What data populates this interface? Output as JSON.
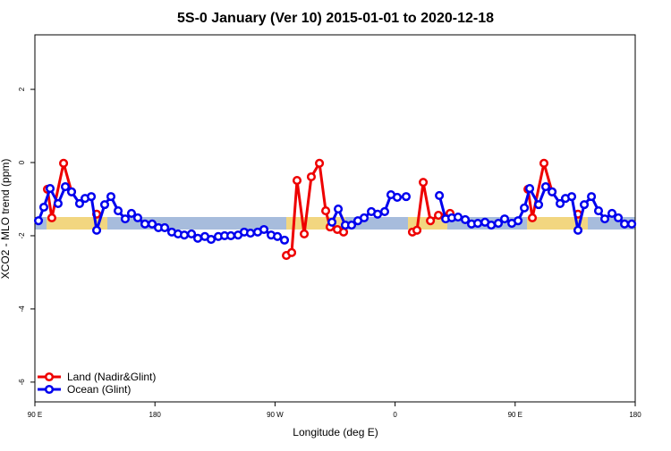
{
  "chart_data": {
    "type": "line",
    "title": "5S-0 January (Ver 10)   2015-01-01 to 2020-12-18",
    "x_label": "Longitude (deg E)",
    "y_label": "XCO2 - MLO trend (ppm)",
    "xlim": [
      90,
      540
    ],
    "ylim": [
      -6.54,
      3.49
    ],
    "xticks": [
      {
        "value": 90,
        "label": "90 E"
      },
      {
        "value": 180,
        "label": "180"
      },
      {
        "value": 270,
        "label": "90 W"
      },
      {
        "value": 360,
        "label": "0"
      },
      {
        "value": 450,
        "label": "90 E"
      },
      {
        "value": 540,
        "label": "180"
      }
    ],
    "yticks": [
      -6,
      -4,
      -2,
      0,
      2
    ],
    "legend": "bottom-left",
    "series": [
      {
        "name": "Land (Nadir&Glint)",
        "color": "#ee0000",
        "x": [
          99.4,
          102.7,
          111.5,
          117.5,
          125,
          136.3,
          200,
          278.5,
          282.5,
          286.5,
          291.9,
          297.2,
          303.3,
          308.0,
          311.3,
          316.7,
          321.4,
          340,
          373.0,
          376.4,
          381.1,
          386.5,
          392.5,
          401.2,
          420,
          459.6,
          462.9,
          471.6,
          477.7,
          485,
          497.1
        ],
        "values": [
          -0.73,
          -1.51,
          -0.02,
          -0.8,
          null,
          -1.41,
          null,
          -2.54,
          -2.46,
          -0.49,
          -1.95,
          -0.39,
          -0.02,
          -1.32,
          -1.76,
          -1.83,
          -1.9,
          null,
          -1.9,
          -1.85,
          -0.54,
          -1.59,
          -1.44,
          -1.39,
          null,
          -0.73,
          -1.51,
          -0.02,
          -0.8,
          null,
          -1.41
        ]
      },
      {
        "name": "Ocean (Glint)",
        "color": "#0000ee",
        "x": [
          92.7,
          96.7,
          101.4,
          107.4,
          112.8,
          117.5,
          123.5,
          127.6,
          132.3,
          136.3,
          142.3,
          147.0,
          152.4,
          157.7,
          162.4,
          167.1,
          172.5,
          177.9,
          182.6,
          187.3,
          192.6,
          197.3,
          202.0,
          207.4,
          212.1,
          217.4,
          222.1,
          227.5,
          232.2,
          236.9,
          242.3,
          246.9,
          251.6,
          257.0,
          261.7,
          267.1,
          271.8,
          277.1,
          295.2,
          312.7,
          317.4,
          322.7,
          327.4,
          332.1,
          336.8,
          342.2,
          346.9,
          352.2,
          356.9,
          361.6,
          368.3,
          380.4,
          393.2,
          397.9,
          402.5,
          407.2,
          412.6,
          417.3,
          422.0,
          427.4,
          432.1,
          437.4,
          442.1,
          447.5,
          452.2,
          456.9,
          460.9,
          467.6,
          472.9,
          477.7,
          483.7,
          487.7,
          492.4,
          497.1,
          501.8,
          507.2,
          512.5,
          517.2,
          522.6,
          527.3,
          532.0,
          537.4
        ],
        "values": [
          -1.59,
          -1.22,
          -0.71,
          -1.12,
          -0.66,
          -0.8,
          -1.12,
          -0.98,
          -0.93,
          -1.85,
          -1.15,
          -0.93,
          -1.32,
          -1.54,
          -1.39,
          -1.51,
          -1.68,
          -1.68,
          -1.78,
          -1.78,
          -1.9,
          -1.95,
          -1.98,
          -1.95,
          -2.07,
          -2.02,
          -2.1,
          -2.02,
          -2.0,
          -2.0,
          -1.98,
          -1.9,
          -1.93,
          -1.9,
          -1.83,
          -1.98,
          -2.02,
          -2.12,
          null,
          -1.63,
          -1.27,
          -1.71,
          -1.71,
          -1.59,
          -1.51,
          -1.34,
          -1.41,
          -1.34,
          -0.88,
          -0.95,
          -0.93,
          null,
          -0.9,
          -1.54,
          -1.51,
          -1.49,
          -1.56,
          -1.68,
          -1.66,
          -1.63,
          -1.71,
          -1.66,
          -1.54,
          -1.66,
          -1.59,
          -1.24,
          -0.71,
          -1.15,
          -0.66,
          -0.8,
          -1.12,
          -0.98,
          -0.93,
          -1.85,
          -1.15,
          -0.93,
          -1.32,
          -1.54,
          -1.39,
          -1.51,
          -1.68,
          -1.68
        ]
      }
    ]
  }
}
